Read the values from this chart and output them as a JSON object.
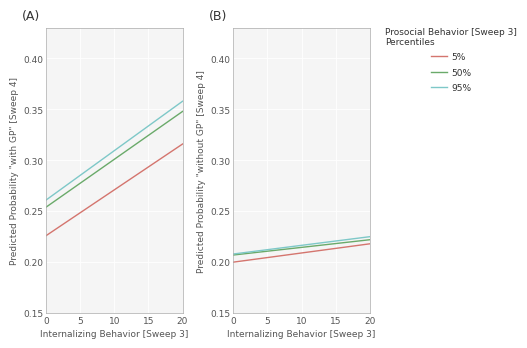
{
  "title_A": "(A)",
  "title_B": "(B)",
  "xlabel": "Internalizing Behavior [Sweep 3]",
  "ylabel_A": "Predicted Probability \"with GP\" [Sweep 4]",
  "ylabel_B": "Predicted Probability \"without GP\" [Sweep 4]",
  "legend_title_line1": "Prosocial Behavior [Sweep 3]",
  "legend_title_line2": "Percentiles",
  "legend_labels": [
    "5%",
    "50%",
    "95%"
  ],
  "colors": [
    "#d4756e",
    "#6aaa6a",
    "#7ec8c8"
  ],
  "xlim": [
    0,
    20
  ],
  "ylim": [
    0.15,
    0.43
  ],
  "xticks": [
    0,
    5,
    10,
    15,
    20
  ],
  "yticks": [
    0.15,
    0.2,
    0.25,
    0.3,
    0.35,
    0.4
  ],
  "panel_A": {
    "lines": [
      {
        "x": [
          0,
          20
        ],
        "y": [
          0.226,
          0.316
        ]
      },
      {
        "x": [
          0,
          20
        ],
        "y": [
          0.254,
          0.348
        ]
      },
      {
        "x": [
          0,
          20
        ],
        "y": [
          0.261,
          0.358
        ]
      }
    ]
  },
  "panel_B": {
    "lines": [
      {
        "x": [
          0,
          20
        ],
        "y": [
          0.2,
          0.218
        ]
      },
      {
        "x": [
          0,
          20
        ],
        "y": [
          0.207,
          0.222
        ]
      },
      {
        "x": [
          0,
          20
        ],
        "y": [
          0.208,
          0.225
        ]
      }
    ]
  },
  "background_color": "#ffffff",
  "panel_bg": "#f5f5f5",
  "grid_color": "#ffffff",
  "linewidth": 1.0,
  "tick_color": "#555555",
  "label_color": "#333333",
  "spine_color": "#aaaaaa"
}
